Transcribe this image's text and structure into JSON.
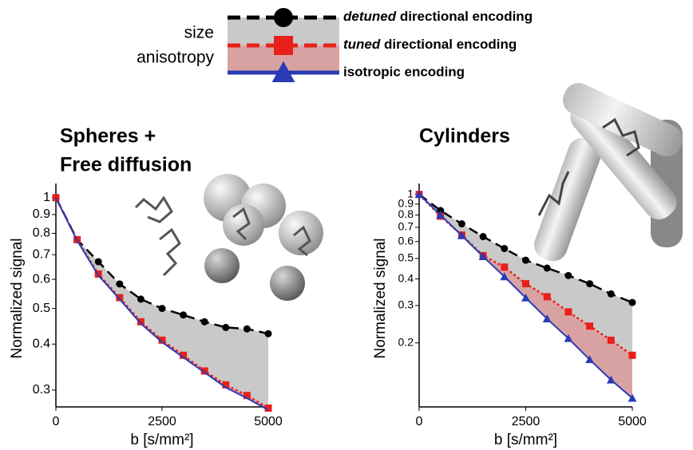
{
  "legend": {
    "labels": [
      "size",
      "anisotropy"
    ]
  },
  "chart_data": [
    {
      "type": "line",
      "title": [
        "Spheres +",
        "Free diffusion"
      ],
      "x_label": "b [s/mm²]",
      "y_label": "Normalized signal",
      "x": [
        0,
        500,
        1000,
        1500,
        2000,
        2500,
        3000,
        3500,
        4000,
        4500,
        5000
      ],
      "xlim": [
        0,
        5000
      ],
      "xticks": [
        0,
        2500,
        5000
      ],
      "ylim": [
        0.27,
        1.05
      ],
      "yticks": [
        0.3,
        0.4,
        0.5,
        0.6,
        0.7,
        0.8,
        0.9,
        1
      ],
      "log_y": true,
      "band_colors": [
        "#c9c9c9",
        "#d9a2a2"
      ],
      "series": [
        {
          "color": "#000000",
          "dash": "dashed",
          "marker": "circle",
          "values": [
            1,
            0.769,
            0.67,
            0.583,
            0.53,
            0.5,
            0.48,
            0.46,
            0.444,
            0.44,
            0.427
          ]
        },
        {
          "color": "#e8201a",
          "dash": "dotted",
          "marker": "square",
          "values": [
            1,
            0.769,
            0.62,
            0.535,
            0.46,
            0.41,
            0.373,
            0.338,
            0.31,
            0.29,
            0.268
          ]
        },
        {
          "color": "#2a3bb5",
          "dash": "solid",
          "values": [
            1,
            0.765,
            0.615,
            0.53,
            0.455,
            0.405,
            0.368,
            0.335,
            0.305,
            0.285,
            0.265
          ]
        }
      ]
    },
    {
      "type": "line",
      "title": [
        "Cylinders"
      ],
      "x_label": "b [s/mm²]",
      "y_label": "Normalized signal",
      "x": [
        0,
        500,
        1000,
        1500,
        2000,
        2500,
        3000,
        3500,
        4000,
        4500,
        5000
      ],
      "xlim": [
        0,
        5000
      ],
      "xticks": [
        0,
        2500,
        5000
      ],
      "ylim": [
        0.1,
        1.05
      ],
      "yticks": [
        0.2,
        0.3,
        0.4,
        0.5,
        0.6,
        0.7,
        0.8,
        0.9,
        1
      ],
      "log_y": true,
      "band_colors": [
        "#c9c9c9",
        "#d9a2a2"
      ],
      "series": [
        {
          "name": "detuned directional encoding",
          "color": "#000000",
          "dash": "dashed",
          "marker": "circle",
          "values": [
            1,
            0.84,
            0.727,
            0.633,
            0.556,
            0.49,
            0.45,
            0.415,
            0.38,
            0.34,
            0.31
          ]
        },
        {
          "name": "tuned directional encoding",
          "color": "#e8201a",
          "dash": "dotted",
          "marker": "square",
          "values": [
            1,
            0.79,
            0.644,
            0.515,
            0.455,
            0.38,
            0.33,
            0.28,
            0.24,
            0.206,
            0.175
          ]
        },
        {
          "name": "isotropic encoding",
          "color": "#2a3bb5",
          "dash": "solid",
          "marker": "triangle",
          "values": [
            1,
            0.8,
            0.64,
            0.51,
            0.41,
            0.326,
            0.26,
            0.21,
            0.167,
            0.134,
            0.11
          ]
        }
      ]
    }
  ]
}
